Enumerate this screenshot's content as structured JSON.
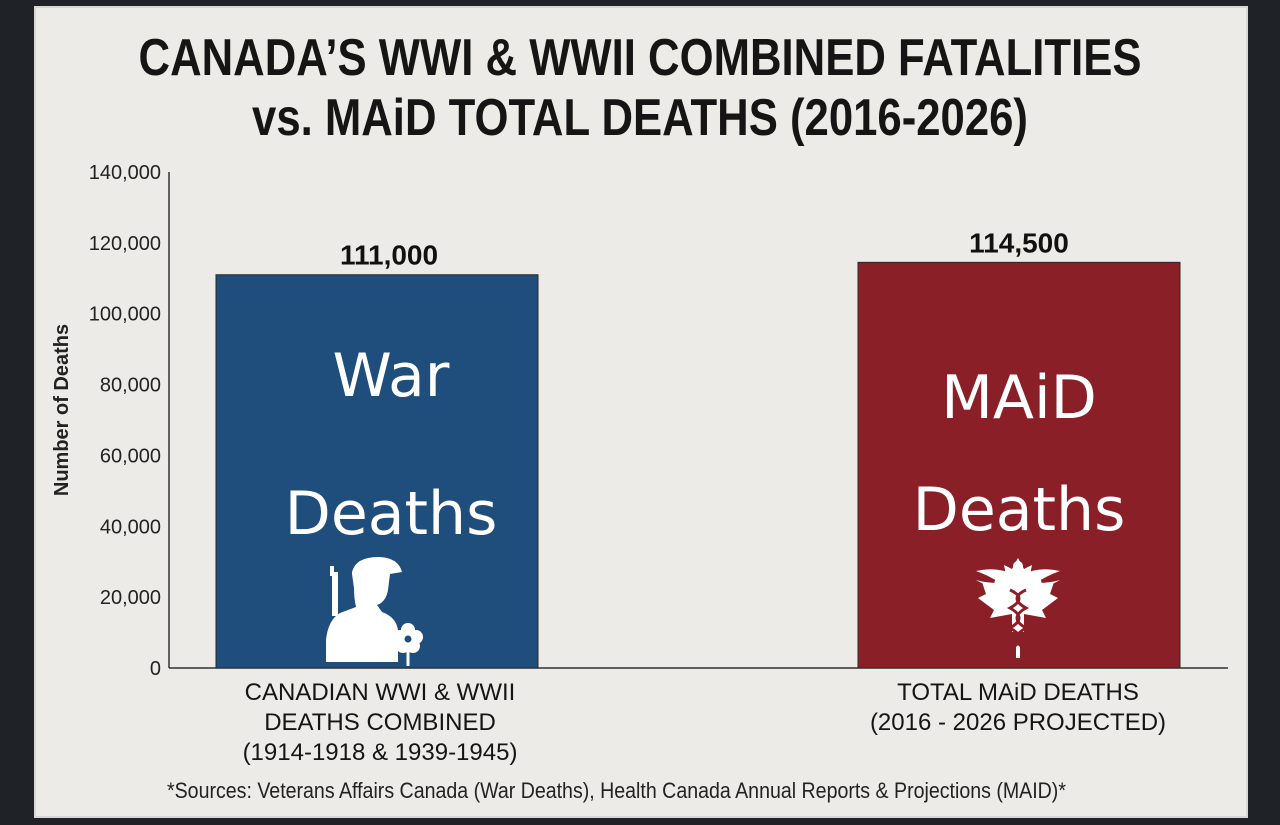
{
  "chart_data": {
    "type": "bar",
    "title_lines": [
      "CANADA’S WWI & WWII COMBINED FATALITIES",
      "vs. MAiD TOTAL DEATHS (2016-2026)"
    ],
    "ylabel": "Number of Deaths",
    "ylim": [
      0,
      140000
    ],
    "yticks": [
      "0",
      "20,000",
      "40,000",
      "60,000",
      "80,000",
      "100,000",
      "120,000",
      "140,000"
    ],
    "categories": [
      {
        "lines": [
          "CANADIAN WWI & WWII",
          "DEATHS COMBINED",
          "(1914-1918 & 1939-1945)"
        ]
      },
      {
        "lines": [
          "TOTAL MAiD DEATHS",
          "(2016 - 2026 PROJECTED)"
        ]
      }
    ],
    "values": [
      111000,
      114500
    ],
    "value_labels": [
      "111,000",
      "114,500"
    ],
    "bar_text": [
      [
        "War",
        "Deaths"
      ],
      [
        "MAiD",
        "Deaths"
      ]
    ],
    "colors": [
      "#1f4e7c",
      "#8a1f28"
    ],
    "icons": [
      "soldier-silhouette-with-poppy-icon",
      "maple-leaf-caduceus-icon"
    ],
    "grid": false,
    "legend": "none",
    "source": "*Sources: Veterans Affairs Canada (War Deaths), Health Canada Annual Reports & Projections (MAID)*"
  }
}
